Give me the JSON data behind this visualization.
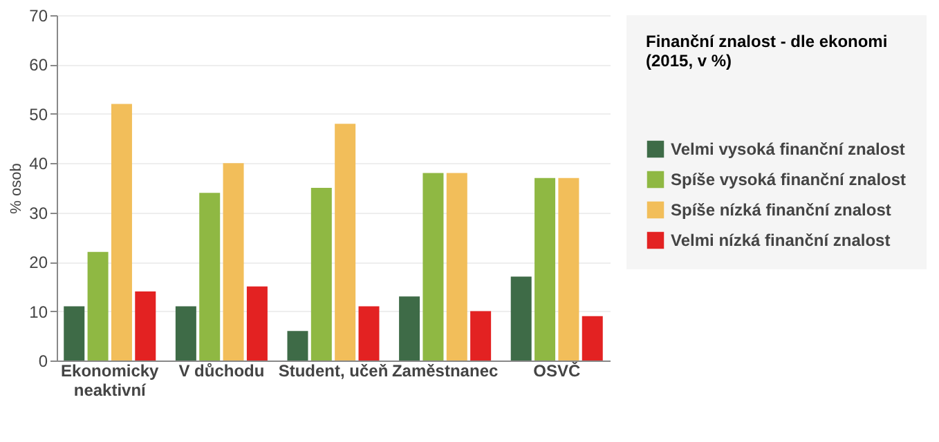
{
  "chart_data": {
    "type": "bar",
    "legend_title": "Finanční znalost - dle ekonomi\n(2015, v %)",
    "ylabel": "% osob",
    "categories": [
      "Ekonomicky neaktivní",
      "V důchodu",
      "Student, učeň",
      "Zaměstnanec",
      "OSVČ"
    ],
    "series": [
      {
        "name": "Velmi vysoká finanční znalost",
        "color": "#3e6b47",
        "values": [
          11,
          11,
          6,
          13,
          17
        ]
      },
      {
        "name": "Spíše vysoká finanční znalost",
        "color": "#8fb843",
        "values": [
          22,
          34,
          35,
          38,
          37
        ]
      },
      {
        "name": "Spíše nízká finanční znalost",
        "color": "#f2be5a",
        "values": [
          52,
          40,
          48,
          38,
          37
        ]
      },
      {
        "name": "Velmi nízká finanční znalost",
        "color": "#e32222",
        "values": [
          14,
          15,
          11,
          10,
          9
        ]
      }
    ],
    "ylim": [
      0,
      70
    ],
    "yticks": [
      0,
      10,
      20,
      30,
      40,
      50,
      60,
      70
    ],
    "grid": "y",
    "legend": "right"
  }
}
